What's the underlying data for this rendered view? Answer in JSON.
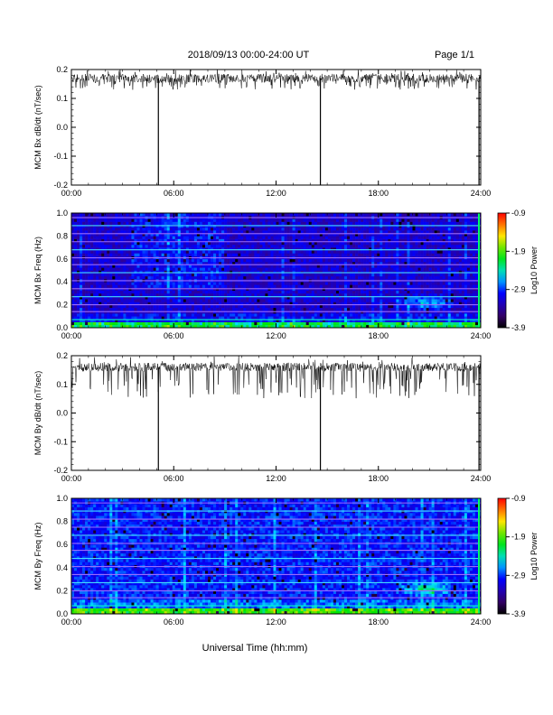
{
  "header": {
    "date_range": "2018/09/13  00:00-24:00 UT",
    "page": "Page 1/1"
  },
  "x_axis": {
    "label": "Universal Time (hh:mm)",
    "ticks": [
      "00:00",
      "06:00",
      "12:00",
      "18:00",
      "24:00"
    ]
  },
  "chart_data": [
    {
      "type": "line",
      "ylabel": "MCM Bx dB/dt (nT/sec)",
      "xlim": [
        0,
        24
      ],
      "ylim": [
        -0.2,
        0.2
      ],
      "yticks": [
        "0.2",
        "0.1",
        "0.0",
        "-0.1",
        "-0.2"
      ],
      "series": [
        {
          "values": {
            "baseline": 0.17,
            "noise_band": [
              0.13,
              0.2
            ]
          }
        }
      ],
      "spikes_hours": [
        5.1,
        14.6,
        23.9
      ]
    },
    {
      "type": "heatmap",
      "ylabel": "MCM Bx Freq (Hz)",
      "xlim": [
        0,
        24
      ],
      "ylim": [
        0,
        1
      ],
      "yticks": [
        "1.0",
        "0.8",
        "0.6",
        "0.4",
        "0.2",
        "0.0"
      ],
      "colorbar": {
        "label": "Log10 Power",
        "ticks": [
          "-0.9",
          "-1.9",
          "-2.9",
          "-3.9"
        ],
        "range": [
          -3.9,
          -0.9
        ]
      },
      "harmonic_lines_hz": [
        0.07,
        0.14,
        0.2,
        0.27,
        0.34,
        0.41,
        0.48,
        0.55,
        0.61,
        0.68,
        0.75,
        0.82,
        0.89,
        0.96
      ],
      "enhancement": {
        "hour": 20.8,
        "freq_hz": 0.22
      }
    },
    {
      "type": "line",
      "ylabel": "MCM By dB/dt (nT/sec)",
      "xlim": [
        0,
        24
      ],
      "ylim": [
        -0.2,
        0.2
      ],
      "yticks": [
        "0.2",
        "0.1",
        "0.0",
        "-0.1",
        "-0.2"
      ],
      "series": [
        {
          "values": {
            "baseline": 0.16,
            "noise_band": [
              0.05,
              0.2
            ]
          }
        }
      ],
      "spikes_hours": [
        5.1,
        14.6,
        23.9
      ]
    },
    {
      "type": "heatmap",
      "ylabel": "MCM By Freq (Hz)",
      "xlim": [
        0,
        24
      ],
      "ylim": [
        0,
        1
      ],
      "yticks": [
        "1.0",
        "0.8",
        "0.6",
        "0.4",
        "0.2",
        "0.0"
      ],
      "colorbar": {
        "label": "Log10 Power",
        "ticks": [
          "-0.9",
          "-1.9",
          "-2.9",
          "-3.9"
        ],
        "range": [
          -3.9,
          -0.9
        ]
      },
      "harmonic_lines_hz": [
        0.07,
        0.14,
        0.2,
        0.27,
        0.34,
        0.41,
        0.48,
        0.55,
        0.61,
        0.68,
        0.75,
        0.82,
        0.89,
        0.96
      ],
      "enhancement": {
        "hour": 20.8,
        "freq_hz": 0.22
      }
    }
  ]
}
